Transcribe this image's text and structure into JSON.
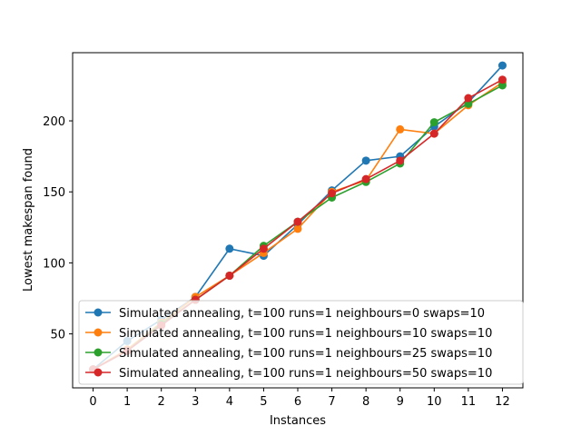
{
  "chart_data": {
    "type": "line",
    "title": "",
    "xlabel": "Instances",
    "ylabel": "Lowest makespan found",
    "x": [
      0,
      1,
      2,
      3,
      4,
      5,
      6,
      7,
      8,
      9,
      10,
      11,
      12
    ],
    "xlim": [
      -0.6,
      12.6
    ],
    "ylim": [
      12,
      248
    ],
    "yticks": [
      50,
      100,
      150,
      200
    ],
    "grid": false,
    "legend": "lower-right",
    "series": [
      {
        "name": "Simulated annealing, t=100 runs=1 neighbours=0 swaps=10",
        "color": "#1f77b4",
        "values": [
          25,
          45,
          60,
          76,
          110,
          105,
          127,
          151,
          172,
          175,
          196,
          213,
          239
        ]
      },
      {
        "name": "Simulated annealing, t=100 runs=1 neighbours=10 swaps=10",
        "color": "#ff7f0e",
        "values": [
          25,
          39,
          58,
          76,
          91,
          107,
          124,
          150,
          158,
          194,
          191,
          211,
          227
        ]
      },
      {
        "name": "Simulated annealing, t=100 runs=1 neighbours=25 swaps=10",
        "color": "#2ca02c",
        "values": [
          25,
          38,
          57,
          74,
          91,
          112,
          129,
          146,
          157,
          170,
          199,
          212,
          225
        ]
      },
      {
        "name": "Simulated annealing, t=100 runs=1 neighbours=50 swaps=10",
        "color": "#d62728",
        "values": [
          25,
          38,
          56,
          74,
          91,
          110,
          129,
          149,
          159,
          172,
          191,
          216,
          229
        ]
      }
    ]
  }
}
